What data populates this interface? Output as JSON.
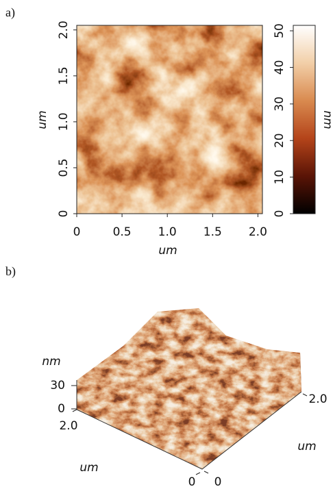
{
  "chart_data": [
    {
      "type": "heatmap",
      "label": "a)",
      "xlabel": "um",
      "ylabel": "um",
      "xlim": [
        0,
        2.05
      ],
      "ylim": [
        0,
        2.05
      ],
      "xticks": [
        0,
        0.5,
        {
          "value": 1,
          "label": "1.0"
        },
        1.5,
        {
          "value": 2,
          "label": "2.0"
        }
      ],
      "yticks": [
        0,
        0.5,
        {
          "value": 1,
          "label": "1.0"
        },
        1.5,
        {
          "value": 2,
          "label": "2.0"
        }
      ],
      "colorbar": {
        "label": "nm",
        "lim": [
          0,
          51.5
        ],
        "ticks": [
          0,
          10,
          20,
          30,
          40,
          50
        ],
        "colors": [
          "#000000",
          "#5a1406",
          "#b4441a",
          "#d98a4f",
          "#f2cfa8",
          "#ffffff"
        ]
      }
    },
    {
      "type": "surface",
      "label": "b)",
      "xlabel": "um",
      "ylabel": "um",
      "zlabel": "nm",
      "xlim": [
        0,
        2
      ],
      "ylim": [
        0,
        2
      ],
      "zlim": [
        0,
        30
      ],
      "xticks": [
        0,
        {
          "value": 2,
          "label": "2.0"
        }
      ],
      "yticks": [
        0,
        {
          "value": 2,
          "label": "2.0"
        }
      ],
      "zticks": [
        0,
        30
      ]
    }
  ]
}
